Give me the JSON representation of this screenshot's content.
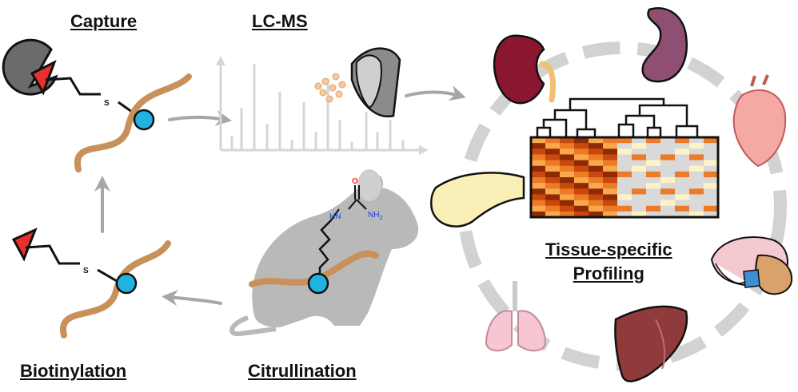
{
  "labels": {
    "capture": "Capture",
    "lcms": "LC-MS",
    "biotinylation": "Biotinylation",
    "citrullination": "Citrullination",
    "tissue_line1": "Tissue-specific",
    "tissue_line2": "Profiling"
  },
  "chemistry": {
    "oxygen": "O",
    "nh": "HN",
    "nh2": "NH",
    "nh2_sub": "2",
    "sulfur": "S"
  },
  "colors": {
    "peptide": "#c8915a",
    "residue": "#21b3e0",
    "biotin": "#e8312f",
    "arrow": "#a7a7a7",
    "ring": "#d2d2d2",
    "mouse": "#b9b9b9"
  },
  "organs": [
    "spleen-icon",
    "kidney-icon",
    "heart-icon",
    "pancreas-icon",
    "brain-icon",
    "lung-icon",
    "liver-icon"
  ]
}
